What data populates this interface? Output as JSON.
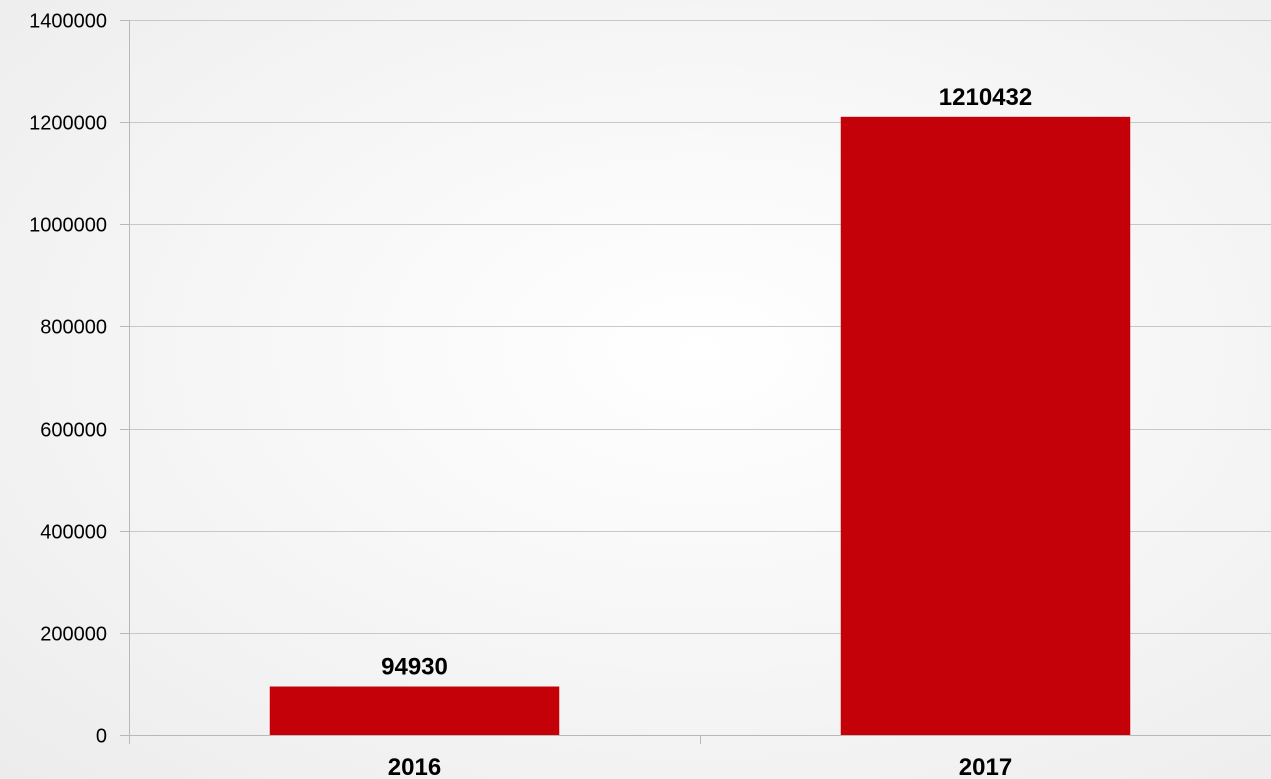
{
  "chart_data": {
    "type": "bar",
    "categories": [
      "2016",
      "2017"
    ],
    "values": [
      94930,
      1210432
    ],
    "data_labels": [
      "94930",
      "1210432"
    ],
    "ylim": [
      0,
      1400000
    ],
    "yticks": [
      0,
      200000,
      400000,
      600000,
      800000,
      1000000,
      1200000,
      1400000
    ],
    "ytick_labels": [
      "0",
      "200000",
      "400000",
      "600000",
      "800000",
      "1000000",
      "1200000",
      "1400000"
    ],
    "grid": true,
    "legend": "none",
    "bar_color": "#c40009"
  }
}
